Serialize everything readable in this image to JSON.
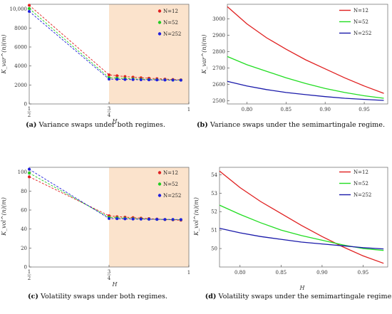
{
  "chart_data": [
    {
      "id": "a",
      "type": "scatter",
      "caption_tag": "(a)",
      "caption": "Variance swaps under both regimes.",
      "xlabel": "H",
      "ylabel": "K_var^(n)(m)",
      "xlim": [
        0.5,
        1.0
      ],
      "ylim": [
        0,
        10500
      ],
      "xticks": [
        {
          "v": 0.5,
          "num": "1",
          "den": "2"
        },
        {
          "v": 0.75,
          "num": "3",
          "den": "4"
        },
        {
          "v": 1.0,
          "num": "1",
          "den": ""
        }
      ],
      "yticks": [
        0,
        2000,
        4000,
        6000,
        8000,
        10000
      ],
      "ytick_labels": [
        "0",
        "2000",
        "4000",
        "6000",
        "8000",
        "10,000"
      ],
      "shade_from": 0.75,
      "shade_color": "#fbe3cc",
      "legend_position": "top-right",
      "series": [
        {
          "name": "N=12",
          "color": "#e02020",
          "x": [
            0.5,
            0.75,
            0.775,
            0.8,
            0.825,
            0.85,
            0.875,
            0.9,
            0.925,
            0.95,
            0.975
          ],
          "y": [
            10400,
            3070,
            2970,
            2890,
            2820,
            2760,
            2710,
            2660,
            2620,
            2580,
            2545
          ]
        },
        {
          "name": "N=52",
          "color": "#22cc22",
          "x": [
            0.5,
            0.75,
            0.775,
            0.8,
            0.825,
            0.85,
            0.875,
            0.9,
            0.925,
            0.95,
            0.975
          ],
          "y": [
            10050,
            2770,
            2720,
            2680,
            2640,
            2610,
            2580,
            2560,
            2540,
            2525,
            2510
          ]
        },
        {
          "name": "N=252",
          "color": "#2020dd",
          "x": [
            0.5,
            0.75,
            0.775,
            0.8,
            0.825,
            0.85,
            0.875,
            0.9,
            0.925,
            0.95,
            0.975
          ],
          "y": [
            9750,
            2620,
            2600,
            2580,
            2565,
            2550,
            2540,
            2530,
            2520,
            2510,
            2505
          ]
        }
      ]
    },
    {
      "id": "b",
      "type": "line",
      "caption_tag": "(b)",
      "caption": "Variance swaps under the semimartingale regime.",
      "xlabel": "",
      "ylabel": "K_var^(n)(m)",
      "xlim": [
        0.775,
        0.98
      ],
      "ylim": [
        2480,
        3090
      ],
      "xticks": [
        0.8,
        0.85,
        0.9,
        0.95
      ],
      "xtick_labels": [
        "0.80",
        "0.85",
        "0.90",
        "0.95"
      ],
      "yticks": [
        2500,
        2600,
        2700,
        2800,
        2900,
        3000
      ],
      "ytick_labels": [
        "2500",
        "2600",
        "2700",
        "2800",
        "2900",
        "3000"
      ],
      "legend_position": "top-right",
      "series": [
        {
          "name": "N=12",
          "color": "#e02020",
          "x": [
            0.775,
            0.8,
            0.825,
            0.85,
            0.875,
            0.9,
            0.925,
            0.95,
            0.975
          ],
          "y": [
            3075,
            2970,
            2885,
            2815,
            2750,
            2695,
            2640,
            2590,
            2545
          ]
        },
        {
          "name": "N=52",
          "color": "#22dd22",
          "x": [
            0.775,
            0.8,
            0.825,
            0.85,
            0.875,
            0.9,
            0.925,
            0.95,
            0.975
          ],
          "y": [
            2770,
            2720,
            2680,
            2640,
            2605,
            2575,
            2550,
            2530,
            2515
          ]
        },
        {
          "name": "N=252",
          "color": "#1a1aaa",
          "x": [
            0.775,
            0.8,
            0.825,
            0.85,
            0.875,
            0.9,
            0.925,
            0.95,
            0.975
          ],
          "y": [
            2618,
            2590,
            2568,
            2550,
            2537,
            2525,
            2515,
            2508,
            2502
          ]
        }
      ]
    },
    {
      "id": "c",
      "type": "scatter",
      "caption_tag": "(c)",
      "caption": "Volatility swaps under both regimes.",
      "xlabel": "H",
      "ylabel": "K_vol^(n)(m)",
      "xlim": [
        0.5,
        1.0
      ],
      "ylim": [
        0,
        105
      ],
      "xticks": [
        {
          "v": 0.5,
          "num": "1",
          "den": "2"
        },
        {
          "v": 0.75,
          "num": "3",
          "den": "4"
        },
        {
          "v": 1.0,
          "num": "1",
          "den": ""
        }
      ],
      "yticks": [
        0,
        20,
        40,
        60,
        80,
        100
      ],
      "ytick_labels": [
        "0",
        "20",
        "40",
        "60",
        "80",
        "100"
      ],
      "shade_from": 0.75,
      "shade_color": "#fbe3cc",
      "legend_position": "top-right",
      "series": [
        {
          "name": "N=12",
          "color": "#e02020",
          "x": [
            0.5,
            0.75,
            0.775,
            0.8,
            0.825,
            0.85,
            0.875,
            0.9,
            0.925,
            0.95,
            0.975
          ],
          "y": [
            95,
            54,
            53,
            52.5,
            52,
            51.5,
            51,
            50.5,
            50,
            49.7,
            49.3
          ]
        },
        {
          "name": "N=52",
          "color": "#22cc22",
          "x": [
            0.5,
            0.75,
            0.775,
            0.8,
            0.825,
            0.85,
            0.875,
            0.9,
            0.925,
            0.95,
            0.975
          ],
          "y": [
            99,
            52.3,
            51.8,
            51.4,
            51,
            50.7,
            50.4,
            50.2,
            50.1,
            50,
            49.9
          ]
        },
        {
          "name": "N=252",
          "color": "#2020dd",
          "x": [
            0.5,
            0.75,
            0.775,
            0.8,
            0.825,
            0.85,
            0.875,
            0.9,
            0.925,
            0.95,
            0.975
          ],
          "y": [
            103,
            51.1,
            50.9,
            50.7,
            50.5,
            50.4,
            50.3,
            50.2,
            50.1,
            50.05,
            50
          ]
        }
      ]
    },
    {
      "id": "d",
      "type": "line",
      "caption_tag": "(d)",
      "caption": "Volatility swaps under the semimartingale regime.",
      "xlabel": "H",
      "ylabel": "K_vol^(n)(m)",
      "xlim": [
        0.775,
        0.98
      ],
      "ylim": [
        49.0,
        54.4
      ],
      "xticks": [
        0.8,
        0.85,
        0.9,
        0.95
      ],
      "xtick_labels": [
        "0.80",
        "0.85",
        "0.90",
        "0.95"
      ],
      "yticks": [
        50,
        51,
        52,
        53,
        54
      ],
      "ytick_labels": [
        "50",
        "51",
        "52",
        "53",
        "54"
      ],
      "legend_position": "top-right",
      "series": [
        {
          "name": "N=12",
          "color": "#e02020",
          "x": [
            0.775,
            0.8,
            0.825,
            0.85,
            0.875,
            0.9,
            0.925,
            0.95,
            0.975
          ],
          "y": [
            54.2,
            53.3,
            52.55,
            51.9,
            51.25,
            50.65,
            50.1,
            49.6,
            49.2
          ]
        },
        {
          "name": "N=52",
          "color": "#22dd22",
          "x": [
            0.775,
            0.8,
            0.825,
            0.85,
            0.875,
            0.9,
            0.925,
            0.95,
            0.975
          ],
          "y": [
            52.35,
            51.85,
            51.4,
            51.0,
            50.7,
            50.45,
            50.2,
            50.0,
            49.9
          ]
        },
        {
          "name": "N=252",
          "color": "#1a1aaa",
          "x": [
            0.775,
            0.8,
            0.825,
            0.85,
            0.875,
            0.9,
            0.925,
            0.95,
            0.975
          ],
          "y": [
            51.1,
            50.85,
            50.65,
            50.5,
            50.35,
            50.25,
            50.15,
            50.05,
            49.98
          ]
        }
      ]
    }
  ]
}
